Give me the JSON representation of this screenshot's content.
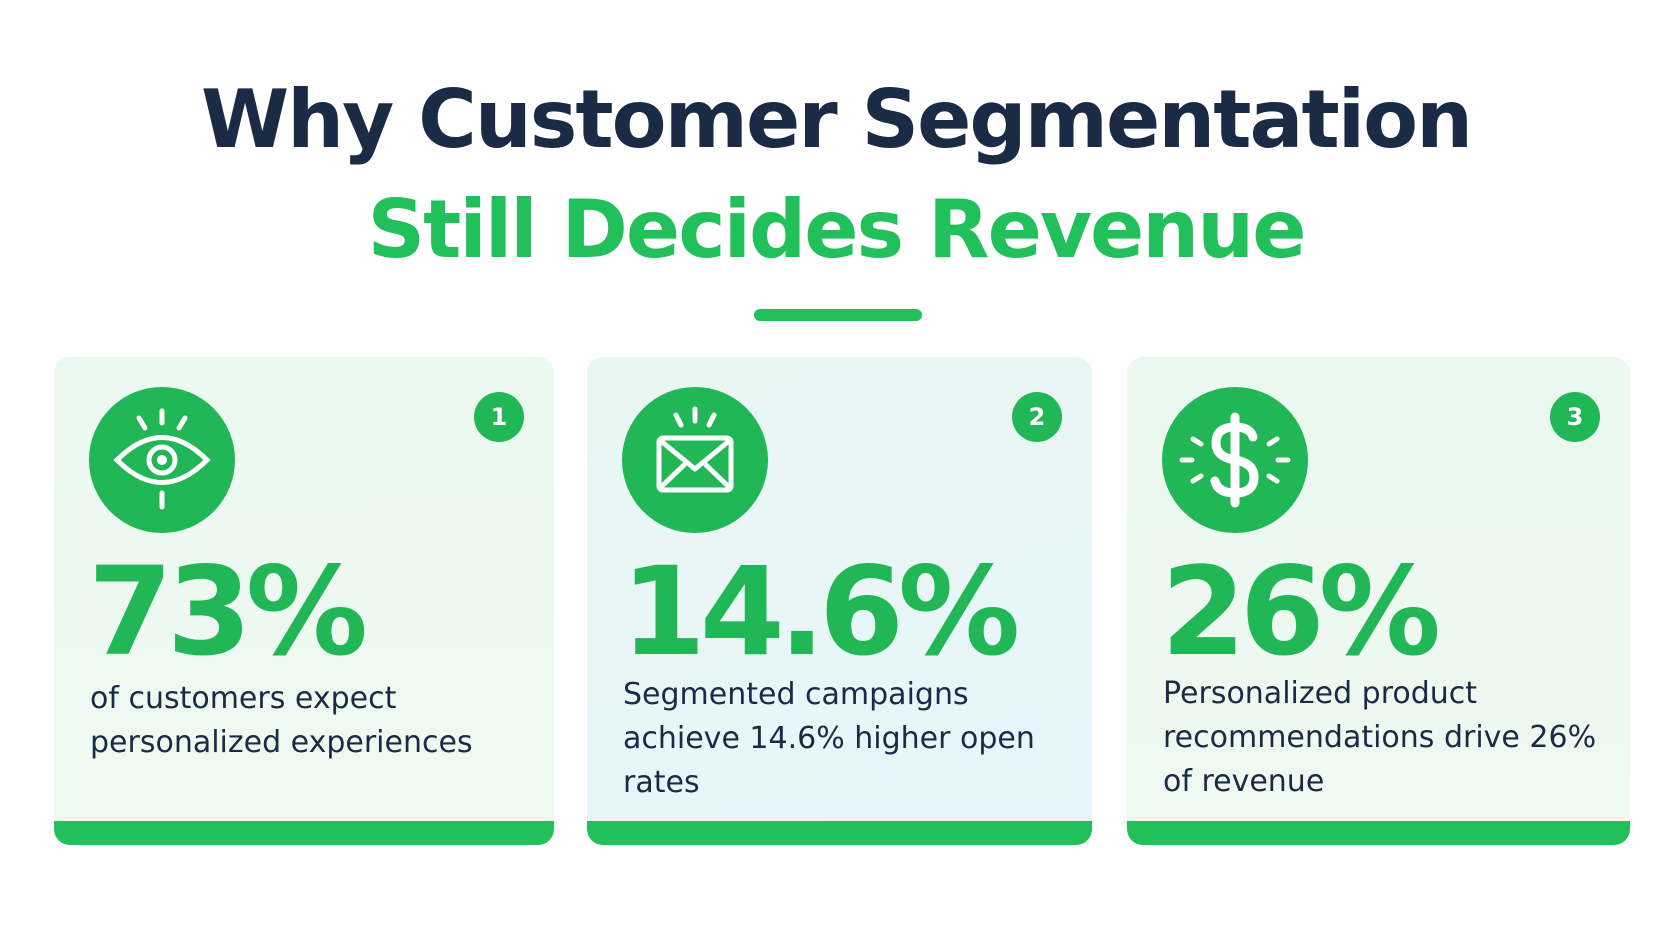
{
  "header": {
    "title_line1": "Why Customer Segmentation",
    "title_line2": "Still Decides Revenue"
  },
  "colors": {
    "accent": "#22c05a",
    "heading": "#1b2a45"
  },
  "cards": [
    {
      "number": "1",
      "icon": "eye-icon",
      "stat": "73%",
      "description": "of customers expect personalized experiences"
    },
    {
      "number": "2",
      "icon": "envelope-icon",
      "stat": "14.6%",
      "description": "Segmented campaigns achieve 14.6% higher open rates"
    },
    {
      "number": "3",
      "icon": "dollar-icon",
      "stat": "26%",
      "description": "Personalized product recommendations drive 26% of revenue"
    }
  ]
}
